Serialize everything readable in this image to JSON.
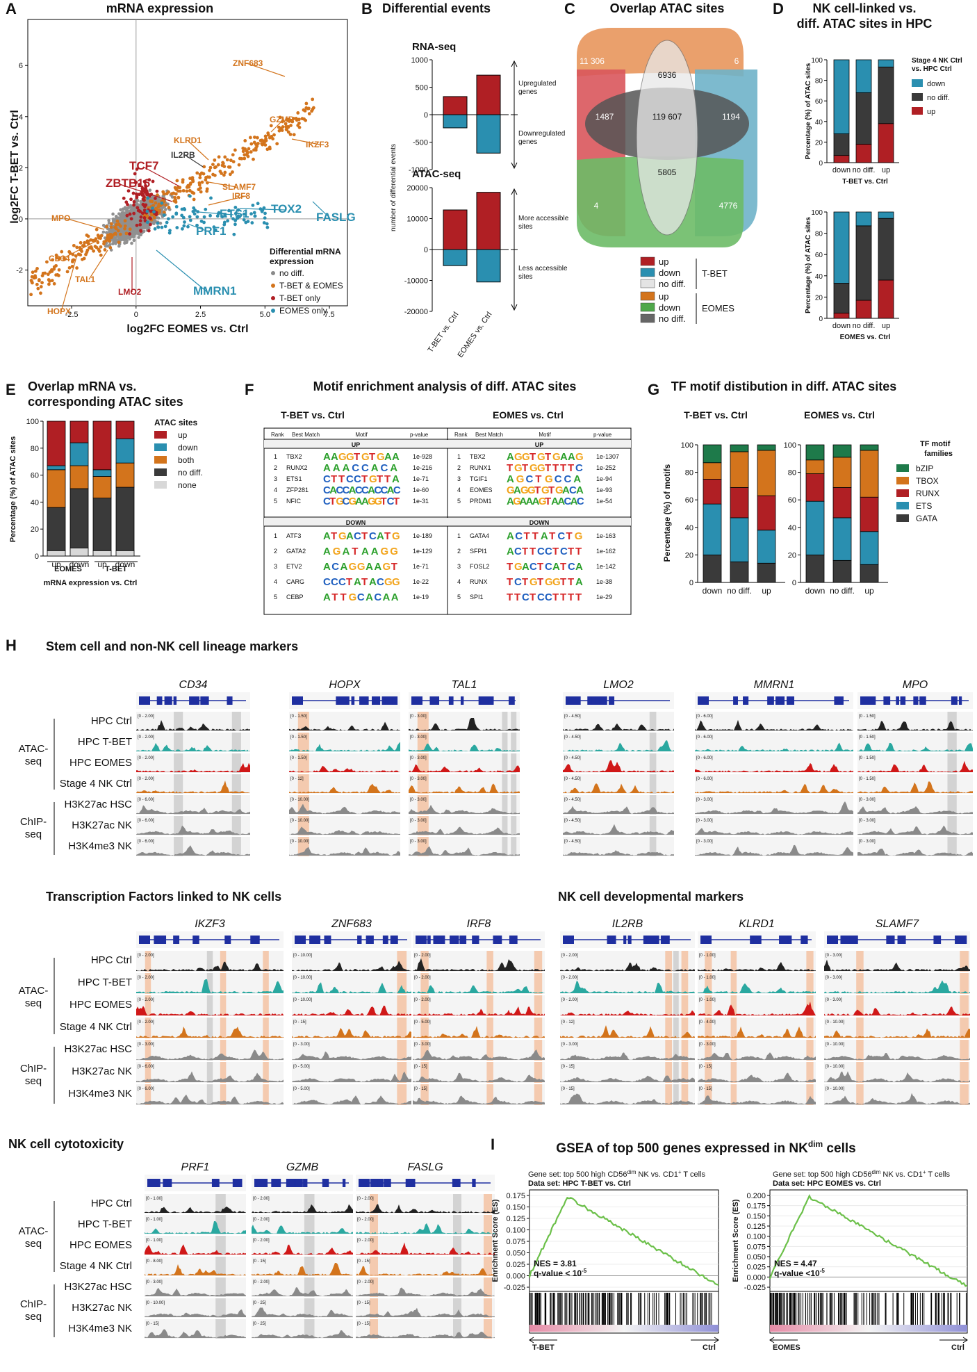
{
  "colors": {
    "up": "#b01f24",
    "down": "#2a8fb0",
    "nodiff": "#3a3a3a",
    "none": "#d8d8d8",
    "both": "#d3741c",
    "tb_only": "#b01f24",
    "both_tf": "#d3741c",
    "eomes_only": "#2a8fb0",
    "bzip": "#1e7a4a",
    "tbox": "#d3741c",
    "runx": "#b01f24",
    "ets": "#2a8fb0",
    "gata": "#3a3a3a",
    "atac_ctrl": "#222222",
    "atac_tbet": "#2aa8a0",
    "atac_eomes": "#d01818",
    "atac_nk": "#d3741c",
    "chip": "#8a8a8a",
    "gsea": "#6cc04a"
  },
  "panels": {
    "A": {
      "letter": "A",
      "title": "mRNA expression",
      "ylabel": "log2FC T-BET vs. Ctrl",
      "xlabel": "log2FC EOMES vs. Ctrl",
      "xticks": [
        "-2.5",
        "0",
        "2.5",
        "5.0",
        "7.5"
      ],
      "yticks": [
        "6",
        "4",
        "2",
        "0",
        "-2"
      ],
      "legend_title": "Differential mRNA expression",
      "legend": [
        "no diff.",
        "T-BET & EOMES",
        "T-BET only",
        "EOMES only"
      ],
      "genes": [
        {
          "name": "ZNF683",
          "g": "both_tf"
        },
        {
          "name": "GZMB",
          "g": "both_tf"
        },
        {
          "name": "KLRD1",
          "g": "both_tf"
        },
        {
          "name": "IKZF3",
          "g": "both_tf"
        },
        {
          "name": "IL2RB",
          "g": "nodiff"
        },
        {
          "name": "TCF7",
          "g": "tb_only"
        },
        {
          "name": "ZBTB16",
          "g": "tb_only"
        },
        {
          "name": "SLAMF7",
          "g": "both_tf"
        },
        {
          "name": "IRF8",
          "g": "both_tf"
        },
        {
          "name": "TOX2",
          "g": "eomes_only"
        },
        {
          "name": "ETS1",
          "g": "eomes_only"
        },
        {
          "name": "FASLG",
          "g": "eomes_only"
        },
        {
          "name": "MPO",
          "g": "both_tf"
        },
        {
          "name": "PRF1",
          "g": "eomes_only"
        },
        {
          "name": "CD34",
          "g": "both_tf"
        },
        {
          "name": "TAL1",
          "g": "both_tf"
        },
        {
          "name": "LMO2",
          "g": "tb_only"
        },
        {
          "name": "MMRN1",
          "g": "eomes_only"
        },
        {
          "name": "HOPX",
          "g": "both_tf"
        }
      ]
    },
    "B": {
      "letter": "B",
      "title": "Differential events",
      "rna_title": "RNA-seq",
      "atac_title": "ATAC-seq",
      "ylabel": "number of differential events",
      "rna": {
        "yticks": [
          "1000",
          "500",
          "0",
          "-500",
          "-1000"
        ],
        "bars": [
          {
            "up": 330,
            "down": -240
          },
          {
            "up": 720,
            "down": -700
          }
        ],
        "ann_up": "Upregulated genes",
        "ann_down": "Downregulated genes"
      },
      "atac": {
        "yticks": [
          "20000",
          "10000",
          "0",
          "-10000",
          "-20000"
        ],
        "bars": [
          {
            "up": 12800,
            "down": -5200
          },
          {
            "up": 18500,
            "down": -10500
          }
        ],
        "ann_up": "More accessible sites",
        "ann_down": "Less accessible sites"
      },
      "categories": [
        "T-BET vs. Ctrl",
        "EOMES vs. Ctrl"
      ]
    },
    "C": {
      "letter": "C",
      "title": "Overlap ATAC sites",
      "values": {
        "a": "11 306",
        "b": "6",
        "c": "6936",
        "d": "1487",
        "e": "119 607",
        "f": "1194",
        "g": "5805",
        "h": "4",
        "i": "4776"
      },
      "legend1": [
        "up",
        "down",
        "no diff."
      ],
      "legend1_label": "T-BET",
      "legend2": [
        "up",
        "down",
        "no diff."
      ],
      "legend2_label": "EOMES"
    },
    "D": {
      "letter": "D",
      "title1": "NK cell-linked vs.",
      "title2": "diff. ATAC sites in HPC",
      "ylabel": "Percentage (%) of ATAC sites",
      "legend_title": "Stage 4 NK Ctrl vs. HPC Ctrl",
      "legend": [
        "down",
        "no diff.",
        "up"
      ],
      "yticks": [
        "100",
        "80",
        "60",
        "40",
        "20",
        "0"
      ],
      "cats": [
        "down",
        "no diff.",
        "up"
      ],
      "top": {
        "xlabel": "T-BET vs. Ctrl",
        "stacks": [
          [
            7,
            21,
            72
          ],
          [
            18,
            50,
            32
          ],
          [
            38,
            55,
            7
          ]
        ]
      },
      "bottom": {
        "xlabel": "EOMES vs. Ctrl",
        "stacks": [
          [
            5,
            28,
            67
          ],
          [
            17,
            70,
            13
          ],
          [
            36,
            58,
            6
          ]
        ]
      }
    },
    "E": {
      "letter": "E",
      "title1": "Overlap mRNA vs.",
      "title2": "corresponding ATAC sites",
      "ylabel": "Percentage (%) of ATAC sites",
      "yticks": [
        "100",
        "80",
        "60",
        "40",
        "20",
        "0"
      ],
      "cats": [
        "up",
        "down",
        "up",
        "down"
      ],
      "groups": [
        "EOMES",
        "T-BET"
      ],
      "xlabel": "mRNA expression vs. Ctrl",
      "legend_title": "ATAC sites",
      "legend": [
        "up",
        "down",
        "both",
        "no diff.",
        "none"
      ],
      "stacks": [
        [
          4,
          32,
          28,
          3,
          33
        ],
        [
          6,
          44,
          17,
          17,
          16
        ],
        [
          4,
          39,
          16,
          5,
          36
        ],
        [
          4,
          47,
          18,
          18,
          13
        ]
      ]
    },
    "F": {
      "letter": "F",
      "title": "Motif enrichment analysis of diff. ATAC sites",
      "sub1": "T-BET vs. Ctrl",
      "sub2": "EOMES vs. Ctrl",
      "cols": [
        "Rank",
        "Best Match",
        "Motif",
        "p-value"
      ],
      "up": "UP",
      "down": "DOWN",
      "tbet_up": [
        [
          "1",
          "TBX2",
          "AAGGTGTGAA",
          "1e-928"
        ],
        [
          "2",
          "RUNX2",
          "AAACCACA",
          "1e-216"
        ],
        [
          "3",
          "ETS1",
          "CTTCCTGTTA",
          "1e-71"
        ],
        [
          "4",
          "ZFP281",
          "CACCACCACCAC",
          "1e-60"
        ],
        [
          "5",
          "NFIC",
          "CTGCGAAGGTCT",
          "1e-31"
        ]
      ],
      "tbet_down": [
        [
          "1",
          "ATF3",
          "ATGACTCATG",
          "1e-189"
        ],
        [
          "2",
          "GATA2",
          "AGATAAGG",
          "1e-129"
        ],
        [
          "3",
          "ETV2",
          "ACAGGAAGT",
          "1e-71"
        ],
        [
          "4",
          "CARG",
          "CCCTATACGG",
          "1e-22"
        ],
        [
          "5",
          "CEBP",
          "ATTGCACAA",
          "1e-19"
        ]
      ],
      "eomes_up": [
        [
          "1",
          "TBX2",
          "AGGTGTGAAG",
          "1e-1307"
        ],
        [
          "2",
          "RUNX1",
          "TGTGGTTTTC",
          "1e-252"
        ],
        [
          "3",
          "TGIF1",
          "AGCTGCCA",
          "1e-94"
        ],
        [
          "4",
          "EOMES",
          "GAGGTGTGACA",
          "1e-93"
        ],
        [
          "5",
          "PRDM1",
          "AGAAAGTAACAC",
          "1e-54"
        ]
      ],
      "eomes_down": [
        [
          "1",
          "GATA4",
          "ACTTATCTG",
          "1e-163"
        ],
        [
          "2",
          "SFPI1",
          "ACTTCCTCTT",
          "1e-162"
        ],
        [
          "3",
          "FOSL2",
          "TGACTCATCA",
          "1e-142"
        ],
        [
          "4",
          "RUNX",
          "TCTGTGGTTA",
          "1e-38"
        ],
        [
          "5",
          "SPI1",
          "TTCTCCTTTT",
          "1e-29"
        ]
      ]
    },
    "G": {
      "letter": "G",
      "title": "TF motif distibution in diff. ATAC sites",
      "sub1": "T-BET vs. Ctrl",
      "sub2": "EOMES vs. Ctrl",
      "ylabel": "Percentage (%) of motifs",
      "yticks": [
        "100",
        "80",
        "60",
        "40",
        "20",
        "0"
      ],
      "cats": [
        "down",
        "no diff.",
        "up"
      ],
      "legend_title": "TF motif families",
      "legend": [
        "bZIP",
        "TBOX",
        "RUNX",
        "ETS",
        "GATA"
      ],
      "tbet": [
        [
          20,
          37,
          18,
          12,
          13
        ],
        [
          15,
          32,
          22,
          26,
          5
        ],
        [
          14,
          24,
          25,
          33,
          4
        ]
      ],
      "eomes": [
        [
          20,
          39,
          20,
          10,
          11
        ],
        [
          16,
          31,
          22,
          22,
          9
        ],
        [
          13,
          24,
          25,
          34,
          4
        ]
      ]
    },
    "H": {
      "letter": "H",
      "sec1": "Stem cell and non-NK cell lineage markers",
      "sec2": "Transcription Factors linked to NK cells",
      "sec3": "NK cell developmental markers",
      "sec4": "NK cell cytotoxicity",
      "tracks": [
        "HPC Ctrl",
        "HPC T-BET",
        "HPC EOMES",
        "Stage 4 NK Ctrl",
        "H3K27ac HSC",
        "H3K27ac NK",
        "H3K4me3 NK"
      ],
      "group1": "ATAC-seq",
      "group2": "ChIP-seq",
      "row1_genes": [
        "CD34",
        "HOPX",
        "TAL1",
        "LMO2",
        "MMRN1",
        "MPO"
      ],
      "row2_genes": [
        "IKZF3",
        "ZNF683",
        "IRF8",
        "IL2RB",
        "KLRD1",
        "SLAMF7"
      ],
      "row3_genes": [
        "PRF1",
        "GZMB",
        "FASLG"
      ],
      "ranges": {
        "CD34": [
          "[0 - 2.00]",
          "[0 - 2.00]",
          "[0 - 2.00]",
          "[0 - 2.00]",
          "[0 - 6.00]",
          "[0 - 6.00]",
          "[0 - 6.00]"
        ],
        "HOPX": [
          "[0 - 1.50]",
          "[0 - 1.50]",
          "[0 - 1.50]",
          "[0 - 12]",
          "[0 - 10.00]",
          "[0 - 10.00]",
          "[0 - 10.00]"
        ],
        "TAL1": [
          "[0 - 3.00]",
          "[0 - 3.00]",
          "[0 - 3.00]",
          "[0 - 3.00]",
          "[0 - 3.00]",
          "[0 - 3.00]",
          "[0 - 3.00]"
        ],
        "LMO2": [
          "[0 - 4.50]",
          "[0 - 4.50]",
          "[0 - 4.50]",
          "[0 - 4.50]",
          "[0 - 4.50]",
          "[0 - 4.50]",
          "[0 - 4.50]"
        ],
        "MMRN1": [
          "[0 - 6.00]",
          "[0 - 6.00]",
          "[0 - 6.00]",
          "[0 - 6.00]",
          "[0 - 3.00]",
          "[0 - 3.00]",
          "[0 - 3.00]"
        ],
        "MPO": [
          "[0 - 1.50]",
          "[0 - 1.50]",
          "[0 - 1.50]",
          "[0 - 1.50]",
          "[0 - 3.00]",
          "[0 - 3.00]",
          "[0 - 3.00]"
        ],
        "IKZF3": [
          "[0 - 2.00]",
          "[0 - 2.00]",
          "[0 - 2.00]",
          "[0 - 2.00]",
          "[0 - 3.00]",
          "[0 - 6.00]",
          "[0 - 6.00]"
        ],
        "ZNF683": [
          "[0 - 10.00]",
          "[0 - 10.00]",
          "[0 - 10.00]",
          "[0 - 15]",
          "[0 - 3.00]",
          "[0 - 5.00]",
          "[0 - 5.00]"
        ],
        "IRF8": [
          "[0 - 2.00]",
          "[0 - 2.00]",
          "[0 - 2.00]",
          "[0 - 5.00]",
          "[0 - 3.00]",
          "[0 - 15]",
          "[0 - 15]"
        ],
        "IL2RB": [
          "[0 - 2.00]",
          "[0 - 2.00]",
          "[0 - 2.00]",
          "[0 - 12]",
          "[0 - 3.00]",
          "[0 - 15]",
          "[0 - 15]"
        ],
        "KLRD1": [
          "[0 - 1.00]",
          "[0 - 1.00]",
          "[0 - 1.00]",
          "[0 - 4.00]",
          "[0 - 3.00]",
          "[0 - 15]",
          "[0 - 15]"
        ],
        "SLAMF7": [
          "[0 - 3.00]",
          "[0 - 3.00]",
          "[0 - 3.00]",
          "[0 - 10.00]",
          "[0 - 10.00]",
          "[0 - 10.00]",
          "[0 - 10.00]"
        ],
        "PRF1": [
          "[0 - 1.00]",
          "[0 - 1.00]",
          "[0 - 1.00]",
          "[0 - 8.00]",
          "[0 - 3.00]",
          "[0 - 10.00]",
          "[0 - 15]"
        ],
        "GZMB": [
          "[0 - 2.00]",
          "[0 - 2.00]",
          "[0 - 2.00]",
          "[0 - 15]",
          "[0 - 2.00]",
          "[0 - 25]",
          "[0 - 25]"
        ],
        "FASLG": [
          "[0 - 2.00]",
          "[0 - 2.00]",
          "[0 - 2.00]",
          "[0 - 15]",
          "[0 - 2.00]",
          "[0 - 15]",
          "[0 - 15]"
        ]
      }
    },
    "I": {
      "letter": "I",
      "title": "GSEA of top 500 genes expressed in NK",
      "title_sup": "dim",
      "title_end": " cells",
      "left": {
        "geneset_pre": "Gene set: top 500 high CD56",
        "geneset_sup": "dim",
        "geneset_post": " NK vs. CD1",
        "geneset_sup2": "+",
        "geneset_end": " T cells",
        "dataset": "Data set: HPC T-BET vs. Ctrl",
        "ylabel": "Enrichment Score (ES)",
        "yticks": [
          "0.175",
          "0.150",
          "0.125",
          "0.100",
          "0.075",
          "0.050",
          "0.025",
          "0.000",
          "-0.025"
        ],
        "nes": "NES = 3.81",
        "q": "q-value < 10",
        "q_sup": "-5",
        "a_left": "T-BET",
        "a_right": "Ctrl"
      },
      "right": {
        "geneset_pre": "Gene set: top 500 high CD56",
        "geneset_sup": "dim",
        "geneset_post": " NK vs. CD1",
        "geneset_sup2": "+",
        "geneset_end": " T cells",
        "dataset": "Data set: HPC EOMES vs. Ctrl",
        "ylabel": "Enrichment Score (ES)",
        "yticks": [
          "0.200",
          "0.175",
          "0.150",
          "0.125",
          "0.100",
          "0.075",
          "0.050",
          "0.025",
          "0.000",
          "-0.025"
        ],
        "nes": "NES = 4.47",
        "q": "q-value <10",
        "q_sup": "-5",
        "a_left": "EOMES",
        "a_right": "Ctrl"
      }
    }
  }
}
